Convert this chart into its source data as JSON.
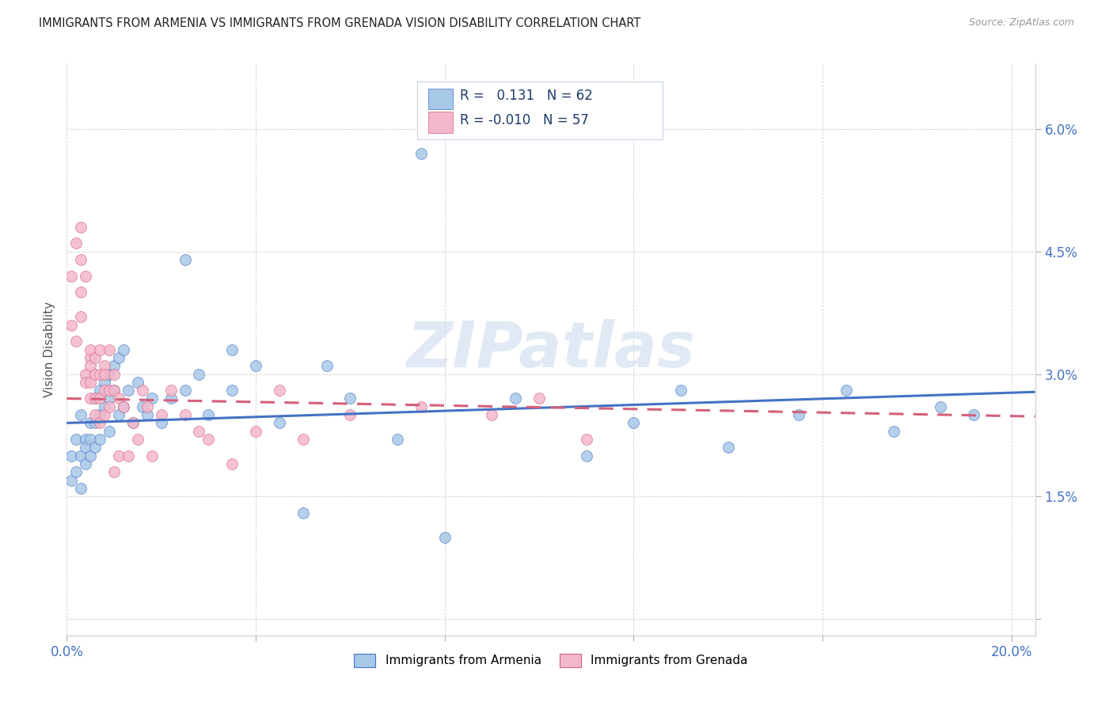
{
  "title": "IMMIGRANTS FROM ARMENIA VS IMMIGRANTS FROM GRENADA VISION DISABILITY CORRELATION CHART",
  "source": "Source: ZipAtlas.com",
  "ylabel": "Vision Disability",
  "xlim": [
    0.0,
    0.205
  ],
  "ylim": [
    -0.002,
    0.068
  ],
  "xticks": [
    0.0,
    0.04,
    0.08,
    0.12,
    0.16,
    0.2
  ],
  "xtick_labels": [
    "0.0%",
    "",
    "",
    "",
    "",
    "20.0%"
  ],
  "yticks": [
    0.0,
    0.015,
    0.03,
    0.045,
    0.06
  ],
  "ytick_labels": [
    "",
    "1.5%",
    "3.0%",
    "4.5%",
    "6.0%"
  ],
  "color_armenia": "#a8c8e8",
  "color_grenada": "#f4b8cc",
  "line_color_armenia": "#4472c4",
  "line_color_grenada": "#d4607a",
  "background_color": "#ffffff",
  "watermark": "ZIPatlas",
  "armenia_x": [
    0.001,
    0.001,
    0.002,
    0.002,
    0.003,
    0.003,
    0.003,
    0.004,
    0.004,
    0.004,
    0.005,
    0.005,
    0.005,
    0.006,
    0.006,
    0.006,
    0.007,
    0.007,
    0.007,
    0.008,
    0.008,
    0.009,
    0.009,
    0.009,
    0.01,
    0.01,
    0.011,
    0.011,
    0.012,
    0.012,
    0.013,
    0.014,
    0.015,
    0.016,
    0.017,
    0.018,
    0.02,
    0.022,
    0.025,
    0.028,
    0.03,
    0.035,
    0.04,
    0.045,
    0.05,
    0.06,
    0.07,
    0.08,
    0.095,
    0.11,
    0.12,
    0.13,
    0.14,
    0.155,
    0.165,
    0.175,
    0.185,
    0.192,
    0.025,
    0.035,
    0.055,
    0.075
  ],
  "armenia_y": [
    0.02,
    0.017,
    0.022,
    0.018,
    0.025,
    0.02,
    0.016,
    0.022,
    0.019,
    0.021,
    0.024,
    0.02,
    0.022,
    0.027,
    0.024,
    0.021,
    0.028,
    0.025,
    0.022,
    0.029,
    0.026,
    0.03,
    0.027,
    0.023,
    0.031,
    0.028,
    0.032,
    0.025,
    0.033,
    0.026,
    0.028,
    0.024,
    0.029,
    0.026,
    0.025,
    0.027,
    0.024,
    0.027,
    0.028,
    0.03,
    0.025,
    0.028,
    0.031,
    0.024,
    0.013,
    0.027,
    0.022,
    0.01,
    0.027,
    0.02,
    0.024,
    0.028,
    0.021,
    0.025,
    0.028,
    0.023,
    0.026,
    0.025,
    0.044,
    0.033,
    0.031,
    0.057
  ],
  "grenada_x": [
    0.001,
    0.001,
    0.002,
    0.002,
    0.003,
    0.003,
    0.003,
    0.003,
    0.004,
    0.004,
    0.004,
    0.005,
    0.005,
    0.005,
    0.005,
    0.005,
    0.006,
    0.006,
    0.006,
    0.006,
    0.007,
    0.007,
    0.007,
    0.007,
    0.008,
    0.008,
    0.008,
    0.008,
    0.009,
    0.009,
    0.009,
    0.01,
    0.01,
    0.01,
    0.011,
    0.011,
    0.012,
    0.013,
    0.014,
    0.015,
    0.016,
    0.017,
    0.018,
    0.02,
    0.022,
    0.025,
    0.028,
    0.03,
    0.035,
    0.04,
    0.045,
    0.05,
    0.06,
    0.075,
    0.09,
    0.1,
    0.11
  ],
  "grenada_y": [
    0.042,
    0.036,
    0.046,
    0.034,
    0.048,
    0.044,
    0.04,
    0.037,
    0.042,
    0.03,
    0.029,
    0.032,
    0.031,
    0.029,
    0.033,
    0.027,
    0.032,
    0.03,
    0.027,
    0.025,
    0.033,
    0.03,
    0.027,
    0.024,
    0.031,
    0.028,
    0.03,
    0.025,
    0.033,
    0.028,
    0.026,
    0.03,
    0.028,
    0.018,
    0.027,
    0.02,
    0.026,
    0.02,
    0.024,
    0.022,
    0.028,
    0.026,
    0.02,
    0.025,
    0.028,
    0.025,
    0.023,
    0.022,
    0.019,
    0.023,
    0.028,
    0.022,
    0.025,
    0.026,
    0.025,
    0.027,
    0.022
  ],
  "trend_armenia_x0": 0.0,
  "trend_armenia_y0": 0.024,
  "trend_armenia_x1": 0.205,
  "trend_armenia_y1": 0.0278,
  "trend_grenada_x0": 0.0,
  "trend_grenada_y0": 0.027,
  "trend_grenada_x1": 0.205,
  "trend_grenada_y1": 0.0248
}
